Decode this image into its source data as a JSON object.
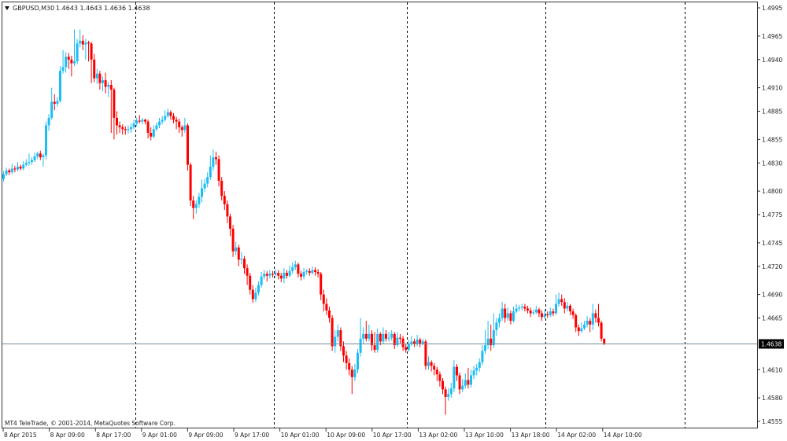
{
  "header": {
    "menu_icon": "triangle-down-icon",
    "symbol": "GBPUSD,M30",
    "ohlc": "1.4643 1.4643 1.4636 1.4638"
  },
  "footer": {
    "copyright": "MT4 TeleTrade, © 2001-2014, MetaQuotes Software Corp."
  },
  "colors": {
    "bull": "#1cbcf4",
    "bear": "#ff0000",
    "doji": "#000000",
    "bid_line": "#778899",
    "separator": "#000000"
  },
  "chart_data": {
    "type": "candlestick",
    "symbol": "GBPUSD",
    "timeframe": "M30",
    "ylim": [
      1.4555,
      1.4995
    ],
    "grid": false,
    "period_separators": true,
    "y_ticks": [
      "1.4995",
      "1.4965",
      "1.4940",
      "1.4910",
      "1.4885",
      "1.4855",
      "1.4830",
      "1.4800",
      "1.4775",
      "1.4745",
      "1.4720",
      "1.4690",
      "1.4665",
      "1.4610",
      "1.4580",
      "1.4555"
    ],
    "x_ticks": [
      "8 Apr 2015",
      "8 Apr 09:00",
      "8 Apr 17:00",
      "9 Apr 01:00",
      "9 Apr 09:00",
      "9 Apr 17:00",
      "10 Apr 01:00",
      "10 Apr 09:00",
      "10 Apr 17:00",
      "13 Apr 02:00",
      "13 Apr 10:00",
      "13 Apr 18:00",
      "14 Apr 02:00",
      "14 Apr 10:00"
    ],
    "bid": {
      "value": 1.4638,
      "label": "1.4638"
    },
    "candles_format": [
      "open",
      "high",
      "low",
      "close"
    ],
    "candles": [
      [
        1.4813,
        1.4821,
        1.481,
        1.4818
      ],
      [
        1.4818,
        1.4825,
        1.4816,
        1.4822
      ],
      [
        1.4822,
        1.4824,
        1.4817,
        1.482
      ],
      [
        1.482,
        1.4829,
        1.4818,
        1.4824
      ],
      [
        1.4824,
        1.4827,
        1.482,
        1.4823
      ],
      [
        1.4823,
        1.4831,
        1.4821,
        1.4826
      ],
      [
        1.4826,
        1.4828,
        1.4822,
        1.4824
      ],
      [
        1.4824,
        1.4832,
        1.4822,
        1.4828
      ],
      [
        1.4828,
        1.4834,
        1.4826,
        1.483
      ],
      [
        1.483,
        1.484,
        1.4827,
        1.4831
      ],
      [
        1.4831,
        1.4836,
        1.4828,
        1.4833
      ],
      [
        1.4833,
        1.4841,
        1.4831,
        1.4837
      ],
      [
        1.4837,
        1.4842,
        1.4834,
        1.484
      ],
      [
        1.484,
        1.4843,
        1.4833,
        1.4836
      ],
      [
        1.4836,
        1.484,
        1.4826,
        1.4838
      ],
      [
        1.4838,
        1.4874,
        1.4834,
        1.487
      ],
      [
        1.487,
        1.4882,
        1.4864,
        1.4878
      ],
      [
        1.4878,
        1.491,
        1.4876,
        1.4895
      ],
      [
        1.4895,
        1.4903,
        1.4886,
        1.4893
      ],
      [
        1.4893,
        1.49,
        1.489,
        1.4896
      ],
      [
        1.4896,
        1.4933,
        1.4894,
        1.4928
      ],
      [
        1.4928,
        1.495,
        1.4925,
        1.4932
      ],
      [
        1.4932,
        1.4948,
        1.4926,
        1.4943
      ],
      [
        1.4943,
        1.4947,
        1.493,
        1.494
      ],
      [
        1.494,
        1.4944,
        1.4922,
        1.4936
      ],
      [
        1.4936,
        1.4972,
        1.4933,
        1.4938
      ],
      [
        1.4938,
        1.4962,
        1.4935,
        1.4957
      ],
      [
        1.4957,
        1.4972,
        1.4953,
        1.496
      ],
      [
        1.496,
        1.4966,
        1.495,
        1.4956
      ],
      [
        1.4956,
        1.4962,
        1.494,
        1.4958
      ],
      [
        1.4958,
        1.496,
        1.4938,
        1.4957
      ],
      [
        1.4957,
        1.4959,
        1.4915,
        1.494
      ],
      [
        1.494,
        1.4946,
        1.4916,
        1.492
      ],
      [
        1.492,
        1.493,
        1.4914,
        1.4925
      ],
      [
        1.4925,
        1.4928,
        1.4908,
        1.4915
      ],
      [
        1.4915,
        1.4922,
        1.4906,
        1.4918
      ],
      [
        1.4918,
        1.4926,
        1.4904,
        1.4911
      ],
      [
        1.4911,
        1.4916,
        1.49,
        1.4913
      ],
      [
        1.4913,
        1.4918,
        1.4862,
        1.4908
      ],
      [
        1.4908,
        1.491,
        1.4855,
        1.4878
      ],
      [
        1.4878,
        1.4885,
        1.486,
        1.487
      ],
      [
        1.487,
        1.4874,
        1.4862,
        1.4868
      ],
      [
        1.4868,
        1.4871,
        1.486,
        1.4866
      ],
      [
        1.4866,
        1.4869,
        1.486,
        1.4865
      ],
      [
        1.4865,
        1.487,
        1.4861,
        1.4866
      ],
      [
        1.4866,
        1.4872,
        1.4862,
        1.4868
      ],
      [
        1.4868,
        1.4876,
        1.4866,
        1.4872
      ],
      [
        1.4872,
        1.4878,
        1.4869,
        1.4875
      ],
      [
        1.4875,
        1.4881,
        1.4872,
        1.4874
      ],
      [
        1.4874,
        1.4878,
        1.4871,
        1.4876
      ],
      [
        1.4876,
        1.4877,
        1.4871,
        1.4874
      ],
      [
        1.4874,
        1.4876,
        1.4856,
        1.4862
      ],
      [
        1.4862,
        1.4868,
        1.4854,
        1.4858
      ],
      [
        1.4858,
        1.487,
        1.4856,
        1.4866
      ],
      [
        1.4866,
        1.4873,
        1.4864,
        1.487
      ],
      [
        1.487,
        1.4878,
        1.4867,
        1.4874
      ],
      [
        1.4874,
        1.488,
        1.4871,
        1.4876
      ],
      [
        1.4876,
        1.4886,
        1.4874,
        1.488
      ],
      [
        1.488,
        1.4888,
        1.4878,
        1.4884
      ],
      [
        1.4884,
        1.4886,
        1.4876,
        1.488
      ],
      [
        1.488,
        1.4883,
        1.4872,
        1.4876
      ],
      [
        1.4876,
        1.4879,
        1.4866,
        1.4874
      ],
      [
        1.4874,
        1.4877,
        1.4862,
        1.4868
      ],
      [
        1.4868,
        1.487,
        1.4858,
        1.4865
      ],
      [
        1.4865,
        1.4878,
        1.4862,
        1.487
      ],
      [
        1.487,
        1.4872,
        1.4822,
        1.4828
      ],
      [
        1.4828,
        1.483,
        1.4784,
        1.479
      ],
      [
        1.479,
        1.4795,
        1.477,
        1.4782
      ],
      [
        1.4782,
        1.479,
        1.4776,
        1.4786
      ],
      [
        1.4786,
        1.4798,
        1.4782,
        1.4794
      ],
      [
        1.4794,
        1.4812,
        1.4788,
        1.4803
      ],
      [
        1.4803,
        1.4813,
        1.4799,
        1.4808
      ],
      [
        1.4808,
        1.482,
        1.4804,
        1.4815
      ],
      [
        1.4815,
        1.4838,
        1.4812,
        1.4826
      ],
      [
        1.4826,
        1.4844,
        1.4822,
        1.4836
      ],
      [
        1.4836,
        1.4842,
        1.4828,
        1.4834
      ],
      [
        1.4834,
        1.4838,
        1.4805,
        1.4811
      ],
      [
        1.4811,
        1.4815,
        1.479,
        1.4795
      ],
      [
        1.4795,
        1.48,
        1.478,
        1.4786
      ],
      [
        1.4786,
        1.479,
        1.4766,
        1.4773
      ],
      [
        1.4773,
        1.4776,
        1.4752,
        1.476
      ],
      [
        1.476,
        1.4764,
        1.473,
        1.4736
      ],
      [
        1.4736,
        1.4746,
        1.4732,
        1.474
      ],
      [
        1.474,
        1.4743,
        1.472,
        1.4727
      ],
      [
        1.4727,
        1.4735,
        1.4722,
        1.4728
      ],
      [
        1.4728,
        1.4731,
        1.4712,
        1.4718
      ],
      [
        1.4718,
        1.4722,
        1.47,
        1.471
      ],
      [
        1.471,
        1.4713,
        1.469,
        1.4695
      ],
      [
        1.4695,
        1.47,
        1.4681,
        1.4685
      ],
      [
        1.4685,
        1.4697,
        1.4682,
        1.4692
      ],
      [
        1.4692,
        1.4704,
        1.4689,
        1.47
      ],
      [
        1.47,
        1.4714,
        1.4697,
        1.4709
      ],
      [
        1.4709,
        1.4716,
        1.4706,
        1.4712
      ],
      [
        1.4712,
        1.4715,
        1.4704,
        1.471
      ],
      [
        1.471,
        1.4716,
        1.4707,
        1.4712
      ],
      [
        1.4712,
        1.4715,
        1.4708,
        1.4711
      ],
      [
        1.4711,
        1.4717,
        1.4708,
        1.4713
      ],
      [
        1.4713,
        1.4716,
        1.4706,
        1.471
      ],
      [
        1.471,
        1.4713,
        1.4703,
        1.4707
      ],
      [
        1.4707,
        1.4718,
        1.4702,
        1.4713
      ],
      [
        1.4713,
        1.4716,
        1.4707,
        1.471
      ],
      [
        1.471,
        1.4721,
        1.4708,
        1.4715
      ],
      [
        1.4715,
        1.4724,
        1.4712,
        1.4719
      ],
      [
        1.4719,
        1.4726,
        1.4716,
        1.4722
      ],
      [
        1.4722,
        1.4724,
        1.4708,
        1.4712
      ],
      [
        1.4712,
        1.4715,
        1.4705,
        1.4709
      ],
      [
        1.4709,
        1.4718,
        1.4706,
        1.4714
      ],
      [
        1.4714,
        1.4717,
        1.4711,
        1.4715
      ],
      [
        1.4715,
        1.4718,
        1.471,
        1.4713
      ],
      [
        1.4713,
        1.472,
        1.4711,
        1.4716
      ],
      [
        1.4716,
        1.4719,
        1.471,
        1.4714
      ],
      [
        1.4714,
        1.4717,
        1.4708,
        1.4712
      ],
      [
        1.4712,
        1.4714,
        1.4684,
        1.469
      ],
      [
        1.469,
        1.4695,
        1.4672,
        1.468
      ],
      [
        1.468,
        1.4686,
        1.4668,
        1.4673
      ],
      [
        1.4673,
        1.4677,
        1.466,
        1.4665
      ],
      [
        1.4665,
        1.4668,
        1.463,
        1.4635
      ],
      [
        1.4635,
        1.4652,
        1.4628,
        1.4645
      ],
      [
        1.4645,
        1.4658,
        1.464,
        1.4652
      ],
      [
        1.4652,
        1.4655,
        1.463,
        1.4635
      ],
      [
        1.4635,
        1.464,
        1.4618,
        1.4625
      ],
      [
        1.4625,
        1.463,
        1.461,
        1.4617
      ],
      [
        1.4617,
        1.4622,
        1.4604,
        1.461
      ],
      [
        1.461,
        1.4614,
        1.4584,
        1.4602
      ],
      [
        1.4602,
        1.4616,
        1.4598,
        1.461
      ],
      [
        1.461,
        1.4632,
        1.4606,
        1.4628
      ],
      [
        1.4628,
        1.4665,
        1.4624,
        1.4643
      ],
      [
        1.4643,
        1.4655,
        1.4638,
        1.4648
      ],
      [
        1.4648,
        1.4662,
        1.464,
        1.4643
      ],
      [
        1.4643,
        1.4658,
        1.464,
        1.4648
      ],
      [
        1.4648,
        1.4652,
        1.463,
        1.4636
      ],
      [
        1.4636,
        1.465,
        1.4628,
        1.4631
      ],
      [
        1.4631,
        1.4654,
        1.4628,
        1.4648
      ],
      [
        1.4648,
        1.465,
        1.4636,
        1.464
      ],
      [
        1.464,
        1.4655,
        1.4637,
        1.4648
      ],
      [
        1.4648,
        1.4652,
        1.464,
        1.4643
      ],
      [
        1.4643,
        1.465,
        1.464,
        1.4644
      ],
      [
        1.4644,
        1.4652,
        1.4641,
        1.4648
      ],
      [
        1.4648,
        1.465,
        1.4632,
        1.4636
      ],
      [
        1.4636,
        1.465,
        1.4634,
        1.4644
      ],
      [
        1.4644,
        1.4648,
        1.4638,
        1.4643
      ],
      [
        1.4643,
        1.4646,
        1.463,
        1.4634
      ],
      [
        1.4634,
        1.4637,
        1.4628,
        1.4631
      ],
      [
        1.4631,
        1.4642,
        1.4629,
        1.4638
      ],
      [
        1.4638,
        1.4646,
        1.4635,
        1.464
      ],
      [
        1.464,
        1.4643,
        1.4634,
        1.4637
      ],
      [
        1.4637,
        1.4647,
        1.4635,
        1.4642
      ],
      [
        1.4642,
        1.4644,
        1.4634,
        1.4638
      ],
      [
        1.4638,
        1.4643,
        1.4636,
        1.464
      ],
      [
        1.464,
        1.4642,
        1.461,
        1.4614
      ],
      [
        1.4614,
        1.4624,
        1.461,
        1.4618
      ],
      [
        1.4618,
        1.462,
        1.4608,
        1.4614
      ],
      [
        1.4614,
        1.4617,
        1.4604,
        1.461
      ],
      [
        1.461,
        1.4613,
        1.4598,
        1.4605
      ],
      [
        1.4605,
        1.4608,
        1.4592,
        1.4598
      ],
      [
        1.4598,
        1.4601,
        1.4584,
        1.4589
      ],
      [
        1.4589,
        1.4592,
        1.4562,
        1.4581
      ],
      [
        1.4581,
        1.459,
        1.4577,
        1.4584
      ],
      [
        1.4584,
        1.4596,
        1.458,
        1.459
      ],
      [
        1.459,
        1.462,
        1.4586,
        1.4613
      ],
      [
        1.4613,
        1.4616,
        1.4598,
        1.4604
      ],
      [
        1.4604,
        1.4607,
        1.4584,
        1.4589
      ],
      [
        1.4589,
        1.46,
        1.4586,
        1.4593
      ],
      [
        1.4593,
        1.4606,
        1.459,
        1.4599
      ],
      [
        1.4599,
        1.4612,
        1.459,
        1.4594
      ],
      [
        1.4594,
        1.461,
        1.4591,
        1.4604
      ],
      [
        1.4604,
        1.4614,
        1.46,
        1.4609
      ],
      [
        1.4609,
        1.4616,
        1.4604,
        1.4612
      ],
      [
        1.4612,
        1.4622,
        1.4608,
        1.4618
      ],
      [
        1.4618,
        1.4636,
        1.4615,
        1.463
      ],
      [
        1.463,
        1.4652,
        1.4627,
        1.4636
      ],
      [
        1.4636,
        1.4662,
        1.4632,
        1.4643
      ],
      [
        1.4643,
        1.4658,
        1.463,
        1.4636
      ],
      [
        1.4636,
        1.467,
        1.4633,
        1.4652
      ],
      [
        1.4652,
        1.4665,
        1.4646,
        1.466
      ],
      [
        1.466,
        1.467,
        1.4655,
        1.4665
      ],
      [
        1.4665,
        1.4682,
        1.4662,
        1.4675
      ],
      [
        1.4675,
        1.468,
        1.466,
        1.4665
      ],
      [
        1.4665,
        1.4676,
        1.4662,
        1.467
      ],
      [
        1.467,
        1.4673,
        1.4658,
        1.4662
      ],
      [
        1.4662,
        1.4677,
        1.466,
        1.4672
      ],
      [
        1.4672,
        1.468,
        1.467,
        1.4675
      ],
      [
        1.4675,
        1.4679,
        1.4672,
        1.4676
      ],
      [
        1.4676,
        1.468,
        1.4673,
        1.4677
      ],
      [
        1.4677,
        1.468,
        1.4672,
        1.4675
      ],
      [
        1.4675,
        1.4678,
        1.467,
        1.4673
      ],
      [
        1.4673,
        1.4676,
        1.4666,
        1.467
      ],
      [
        1.467,
        1.4674,
        1.4668,
        1.4671
      ],
      [
        1.4671,
        1.4678,
        1.4669,
        1.4674
      ],
      [
        1.4674,
        1.4676,
        1.4666,
        1.467
      ],
      [
        1.467,
        1.4673,
        1.4662,
        1.4666
      ],
      [
        1.4666,
        1.4674,
        1.4664,
        1.4669
      ],
      [
        1.4669,
        1.4672,
        1.4665,
        1.4668
      ],
      [
        1.4668,
        1.4676,
        1.4666,
        1.4672
      ],
      [
        1.4672,
        1.4675,
        1.4667,
        1.467
      ],
      [
        1.467,
        1.469,
        1.4668,
        1.468
      ],
      [
        1.468,
        1.4692,
        1.4677,
        1.4685
      ],
      [
        1.4685,
        1.469,
        1.4678,
        1.4682
      ],
      [
        1.4682,
        1.4686,
        1.467,
        1.4675
      ],
      [
        1.4675,
        1.4682,
        1.4672,
        1.4678
      ],
      [
        1.4678,
        1.468,
        1.4668,
        1.4672
      ],
      [
        1.4672,
        1.4675,
        1.4664,
        1.4668
      ],
      [
        1.4668,
        1.467,
        1.465,
        1.4655
      ],
      [
        1.4655,
        1.4658,
        1.4646,
        1.4651
      ],
      [
        1.4651,
        1.466,
        1.4649,
        1.4654
      ],
      [
        1.4654,
        1.4662,
        1.4652,
        1.4658
      ],
      [
        1.4658,
        1.4667,
        1.4655,
        1.4662
      ],
      [
        1.4662,
        1.4665,
        1.465,
        1.4658
      ],
      [
        1.4658,
        1.468,
        1.4652,
        1.467
      ],
      [
        1.467,
        1.4674,
        1.466,
        1.4665
      ],
      [
        1.4665,
        1.468,
        1.4656,
        1.466
      ],
      [
        1.466,
        1.4662,
        1.464,
        1.4643
      ],
      [
        1.4643,
        1.4643,
        1.4636,
        1.4638
      ]
    ]
  }
}
